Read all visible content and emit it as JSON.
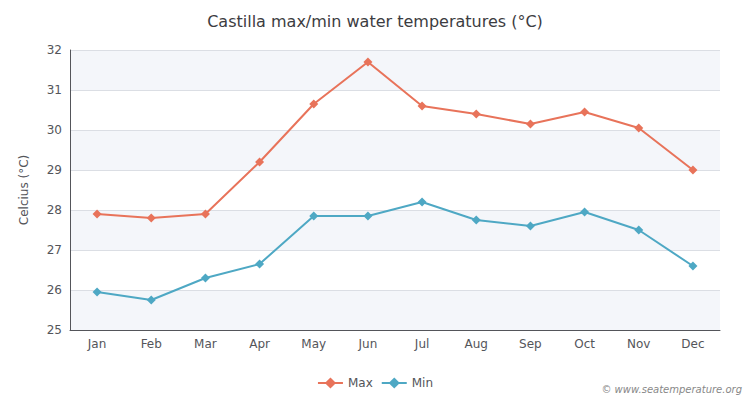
{
  "chart_data": {
    "type": "line",
    "title": "Castilla max/min water temperatures (°C)",
    "ylabel": "Celcius (°C)",
    "categories": [
      "Jan",
      "Feb",
      "Mar",
      "Apr",
      "May",
      "Jun",
      "Jul",
      "Aug",
      "Sep",
      "Oct",
      "Nov",
      "Dec"
    ],
    "series": [
      {
        "name": "Max",
        "color": "#E8735A",
        "values": [
          27.9,
          27.8,
          27.9,
          29.2,
          30.65,
          31.7,
          30.6,
          30.4,
          30.15,
          30.45,
          30.05,
          29.0
        ]
      },
      {
        "name": "Min",
        "color": "#4EA8C4",
        "values": [
          25.95,
          25.75,
          26.3,
          26.65,
          27.85,
          27.85,
          28.2,
          27.75,
          27.6,
          27.95,
          27.5,
          26.6
        ]
      }
    ],
    "ylim": [
      25,
      32
    ],
    "yticks": [
      25,
      26,
      27,
      28,
      29,
      30,
      31,
      32
    ],
    "grid": true,
    "legend": "bottom",
    "marker": "diamond",
    "annotations": [
      {
        "text": "© www.seatemperature.org"
      }
    ]
  }
}
